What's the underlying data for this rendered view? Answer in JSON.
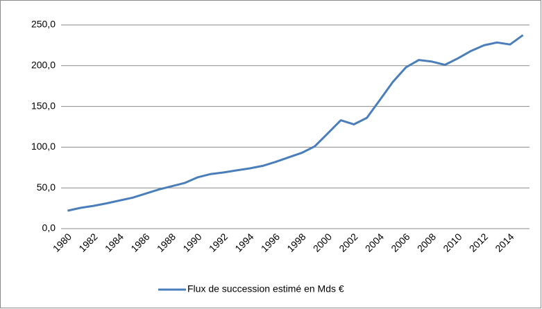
{
  "chart_data": {
    "type": "line",
    "categories": [
      "1980",
      null,
      "1982",
      null,
      "1984",
      null,
      "1986",
      null,
      "1988",
      null,
      "1990",
      null,
      "1992",
      null,
      "1994",
      null,
      "1996",
      null,
      "1998",
      null,
      "2000",
      null,
      "2002",
      null,
      "2004",
      null,
      "2006",
      null,
      "2008",
      null,
      "2010",
      null,
      "2012",
      null,
      "2014",
      null
    ],
    "series": [
      {
        "name": "Flux de succession estimé en Mds €",
        "color": "#4a7ebb",
        "values": [
          22,
          25.5,
          28,
          31,
          34.5,
          38,
          43,
          48,
          52,
          56,
          63,
          67,
          69,
          71.5,
          74,
          77,
          82,
          87.5,
          93,
          101,
          117,
          133,
          128,
          136,
          158,
          180,
          198,
          207,
          205,
          201,
          209,
          218,
          225,
          228.5,
          226,
          237.5
        ]
      }
    ],
    "ylim": [
      0,
      250
    ],
    "yticks": [
      {
        "value": 0,
        "label": "0,0"
      },
      {
        "value": 50,
        "label": "50,0"
      },
      {
        "value": 100,
        "label": "100,0"
      },
      {
        "value": 150,
        "label": "150,0"
      },
      {
        "value": 200,
        "label": "200,0"
      },
      {
        "value": 250,
        "label": "250,0"
      }
    ],
    "grid": true,
    "legend": "bottom"
  }
}
